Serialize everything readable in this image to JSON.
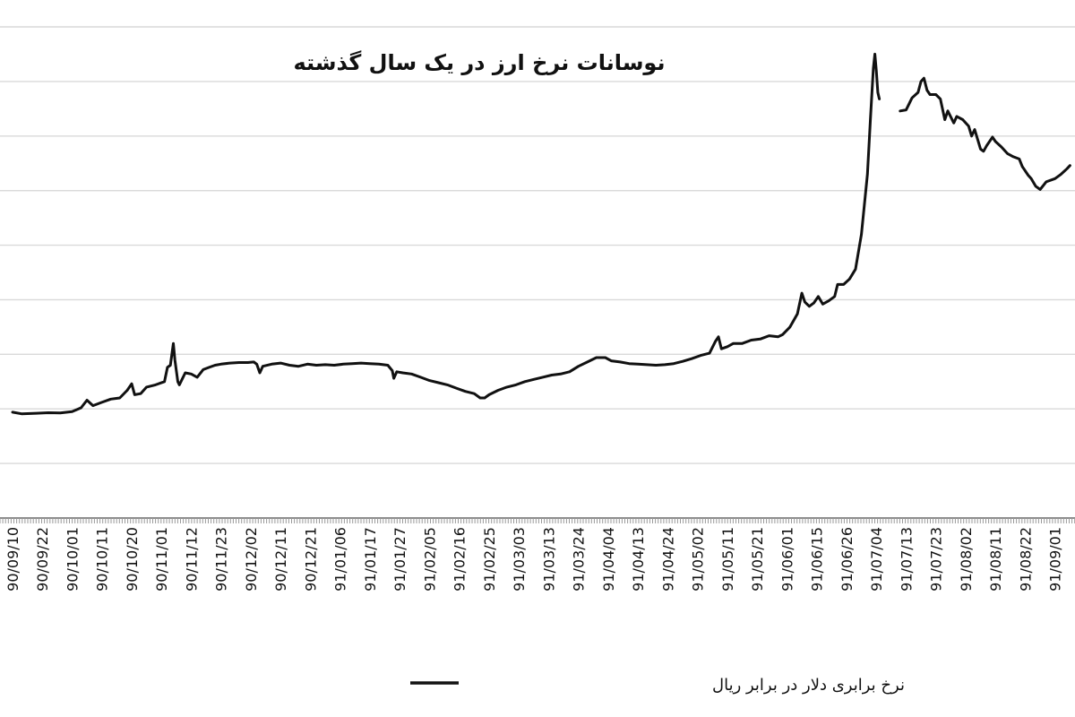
{
  "chart_data": {
    "type": "line",
    "title": "نوسانات نرخ ارز در یک سال گذشته",
    "xlabel": "",
    "ylabel": "",
    "legend_position": "bottom",
    "grid": true,
    "y_tick_labels_visible": false,
    "ylim": [
      0,
      45000
    ],
    "x_ticks": [
      "90/09/10",
      "90/09/22",
      "90/10/01",
      "90/10/11",
      "90/10/20",
      "90/11/01",
      "90/11/12",
      "90/11/23",
      "90/12/02",
      "90/12/11",
      "90/12/21",
      "91/01/06",
      "91/01/17",
      "91/01/27",
      "91/02/05",
      "91/02/16",
      "91/02/25",
      "91/03/03",
      "91/03/13",
      "91/03/24",
      "91/04/04",
      "91/04/13",
      "91/04/24",
      "91/05/02",
      "91/05/11",
      "91/05/21",
      "91/06/01",
      "91/06/15",
      "91/06/26",
      "91/07/04",
      "91/07/13",
      "91/07/23",
      "91/08/02",
      "91/08/11",
      "91/08/22",
      "91/09/01"
    ],
    "series": [
      {
        "name": "نرخ برابری دلار در برابر ریال",
        "color": "#111111",
        "segments": [
          [
            [
              0,
              9700
            ],
            [
              0.3,
              9550
            ],
            [
              0.8,
              9600
            ],
            [
              1.2,
              9650
            ],
            [
              1.6,
              9620
            ],
            [
              2.0,
              9750
            ],
            [
              2.3,
              10100
            ],
            [
              2.5,
              10800
            ],
            [
              2.7,
              10300
            ],
            [
              3.0,
              10600
            ],
            [
              3.3,
              10900
            ],
            [
              3.6,
              11000
            ],
            [
              3.85,
              11700
            ],
            [
              4.0,
              12300
            ],
            [
              4.1,
              11300
            ],
            [
              4.3,
              11400
            ],
            [
              4.5,
              12000
            ],
            [
              4.8,
              12200
            ],
            [
              5.1,
              12500
            ],
            [
              5.2,
              13800
            ],
            [
              5.3,
              14000
            ],
            [
              5.4,
              16000
            ],
            [
              5.45,
              14500
            ],
            [
              5.55,
              12500
            ],
            [
              5.6,
              12200
            ],
            [
              5.8,
              13300
            ],
            [
              6.0,
              13200
            ],
            [
              6.2,
              12900
            ],
            [
              6.4,
              13600
            ],
            [
              6.6,
              13800
            ],
            [
              6.8,
              14000
            ],
            [
              7.0,
              14100
            ],
            [
              7.3,
              14200
            ],
            [
              7.6,
              14250
            ],
            [
              7.9,
              14250
            ],
            [
              8.1,
              14300
            ],
            [
              8.2,
              14100
            ],
            [
              8.3,
              13300
            ],
            [
              8.4,
              13900
            ],
            [
              8.7,
              14100
            ],
            [
              9.0,
              14200
            ],
            [
              9.3,
              14000
            ],
            [
              9.6,
              13900
            ],
            [
              9.9,
              14100
            ],
            [
              10.2,
              14000
            ],
            [
              10.5,
              14050
            ],
            [
              10.8,
              14000
            ],
            [
              11.1,
              14100
            ],
            [
              11.4,
              14150
            ],
            [
              11.7,
              14200
            ],
            [
              12.0,
              14150
            ],
            [
              12.3,
              14100
            ],
            [
              12.6,
              14000
            ],
            [
              12.75,
              13500
            ],
            [
              12.8,
              12800
            ],
            [
              12.9,
              13400
            ],
            [
              13.1,
              13300
            ],
            [
              13.4,
              13200
            ],
            [
              13.7,
              12900
            ],
            [
              14.0,
              12600
            ],
            [
              14.3,
              12400
            ],
            [
              14.6,
              12200
            ],
            [
              14.9,
              11900
            ],
            [
              15.2,
              11600
            ],
            [
              15.5,
              11400
            ],
            [
              15.7,
              11000
            ],
            [
              15.85,
              11000
            ],
            [
              16.0,
              11300
            ],
            [
              16.3,
              11700
            ],
            [
              16.6,
              12000
            ],
            [
              16.9,
              12200
            ],
            [
              17.2,
              12500
            ],
            [
              17.5,
              12700
            ],
            [
              17.8,
              12900
            ],
            [
              18.1,
              13100
            ],
            [
              18.4,
              13200
            ],
            [
              18.7,
              13400
            ],
            [
              19.0,
              13900
            ],
            [
              19.3,
              14300
            ],
            [
              19.6,
              14700
            ],
            [
              19.9,
              14700
            ],
            [
              20.1,
              14400
            ],
            [
              20.4,
              14300
            ],
            [
              20.7,
              14150
            ],
            [
              21.0,
              14100
            ],
            [
              21.3,
              14050
            ],
            [
              21.6,
              14000
            ],
            [
              21.9,
              14050
            ],
            [
              22.2,
              14150
            ],
            [
              22.5,
              14350
            ],
            [
              22.8,
              14600
            ],
            [
              23.1,
              14900
            ],
            [
              23.4,
              15100
            ],
            [
              23.6,
              16200
            ],
            [
              23.7,
              16600
            ],
            [
              23.8,
              15500
            ],
            [
              24.0,
              15700
            ],
            [
              24.2,
              16000
            ],
            [
              24.5,
              16000
            ],
            [
              24.8,
              16300
            ],
            [
              25.1,
              16400
            ],
            [
              25.4,
              16700
            ],
            [
              25.7,
              16600
            ],
            [
              25.85,
              16800
            ],
            [
              26.1,
              17500
            ],
            [
              26.35,
              18700
            ],
            [
              26.5,
              20600
            ],
            [
              26.6,
              19800
            ],
            [
              26.75,
              19400
            ],
            [
              26.9,
              19700
            ],
            [
              27.05,
              20300
            ],
            [
              27.2,
              19600
            ],
            [
              27.4,
              19900
            ],
            [
              27.6,
              20300
            ],
            [
              27.7,
              21400
            ],
            [
              27.9,
              21400
            ],
            [
              28.1,
              21900
            ],
            [
              28.3,
              22800
            ],
            [
              28.5,
              26000
            ],
            [
              28.7,
              31500
            ],
            [
              28.8,
              36500
            ],
            [
              28.9,
              41200
            ],
            [
              28.95,
              42500
            ],
            [
              29.0,
              41000
            ],
            [
              29.05,
              39000
            ],
            [
              29.1,
              38400
            ]
          ],
          [
            [
              29.8,
              37300
            ],
            [
              30.0,
              37400
            ],
            [
              30.2,
              38500
            ],
            [
              30.4,
              39000
            ],
            [
              30.5,
              40000
            ],
            [
              30.6,
              40300
            ],
            [
              30.7,
              39200
            ],
            [
              30.8,
              38800
            ],
            [
              31.0,
              38800
            ],
            [
              31.15,
              38400
            ],
            [
              31.3,
              36500
            ],
            [
              31.4,
              37300
            ],
            [
              31.6,
              36200
            ],
            [
              31.7,
              36800
            ],
            [
              31.9,
              36500
            ],
            [
              32.1,
              35900
            ],
            [
              32.2,
              35000
            ],
            [
              32.3,
              35600
            ],
            [
              32.5,
              33800
            ],
            [
              32.6,
              33600
            ],
            [
              32.7,
              34100
            ],
            [
              32.9,
              34900
            ],
            [
              33.0,
              34500
            ],
            [
              33.2,
              34000
            ],
            [
              33.4,
              33400
            ],
            [
              33.6,
              33100
            ],
            [
              33.8,
              32900
            ],
            [
              33.9,
              32200
            ],
            [
              34.1,
              31400
            ],
            [
              34.2,
              31100
            ],
            [
              34.35,
              30400
            ],
            [
              34.5,
              30100
            ],
            [
              34.7,
              30800
            ],
            [
              35.0,
              31100
            ],
            [
              35.2,
              31500
            ],
            [
              35.4,
              32000
            ],
            [
              35.5,
              32300
            ]
          ]
        ]
      }
    ]
  }
}
